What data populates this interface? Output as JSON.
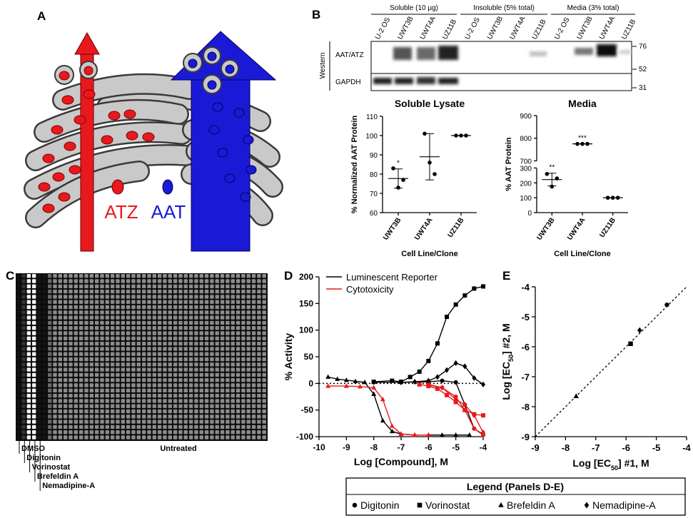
{
  "panel_labels": [
    "A",
    "B",
    "C",
    "D",
    "E"
  ],
  "panel_a": {
    "labels": [
      "ATZ",
      "AAT"
    ]
  },
  "panel_b": {
    "groups": [
      "Soluble (10 µg)",
      "Insoluble (5% total)",
      "Media (3% total)"
    ],
    "lanes": [
      "U-2 OS",
      "UWT3B",
      "UWT4A",
      "UZ11B",
      "U-2 OS",
      "UWT3B",
      "UWT4A",
      "UZ11B",
      "U-2 OS",
      "UWT3B",
      "UWT4A",
      "UZ11B"
    ],
    "method": "Western",
    "rows": [
      "AAT/ATZ",
      "GAPDH"
    ],
    "markers": [
      76,
      52,
      31
    ]
  },
  "panel_c": {
    "treatments": [
      "Nemadipine-A",
      "Brefeldin A",
      "Vorinostat",
      "Digitonin",
      "DMSO"
    ],
    "untreated": "Untreated"
  },
  "legend": {
    "title": "Legend (Panels D-E)",
    "entries": [
      {
        "marker": "circle",
        "name": "Digitonin"
      },
      {
        "marker": "square",
        "name": "Vorinostat"
      },
      {
        "marker": "triangle",
        "name": "Brefeldin A"
      },
      {
        "marker": "diamond",
        "name": "Nemadipine-A"
      }
    ]
  },
  "chart_data": [
    {
      "type": "dot",
      "title": "Soluble Lysate",
      "y_label": "% Normalized AAT Protein",
      "x_label": "Cell Line/Clone",
      "categories": [
        "UWT3B",
        "UWT4A",
        "UZ11B"
      ],
      "points": [
        [
          83,
          73,
          77
        ],
        [
          101,
          86,
          80
        ],
        [
          100,
          100,
          100
        ]
      ],
      "means": [
        77.7,
        89,
        100
      ],
      "errors": [
        5,
        12,
        0
      ],
      "annotations": [
        "*",
        null,
        null
      ],
      "ylim": [
        60,
        110
      ],
      "yticks": [
        60,
        70,
        80,
        90,
        100,
        110
      ],
      "color": "#000000"
    },
    {
      "type": "dot",
      "title": "Media",
      "y_label": "% AAT Protein",
      "x_label": "Cell Line/Clone",
      "categories": [
        "UWT3B",
        "UWT4A",
        "UZ11B"
      ],
      "points": [
        [
          260,
          175,
          230
        ],
        [
          775,
          775,
          775
        ],
        [
          100,
          100,
          100
        ]
      ],
      "means": [
        222,
        775,
        100
      ],
      "errors": [
        43,
        0,
        0
      ],
      "annotations": [
        "**",
        "***",
        null
      ],
      "ylim": [
        0,
        900
      ],
      "ybreak": [
        300,
        700
      ],
      "yticks": [
        0,
        100,
        200,
        300,
        700,
        800,
        900
      ],
      "color": "#000000"
    },
    {
      "type": "line",
      "x_label": "Log [Compound], M",
      "y_label": "% Activity",
      "xlim": [
        -10,
        -4
      ],
      "xticks": [
        -10,
        -9,
        -8,
        -7,
        -6,
        -5,
        -4
      ],
      "ylim": [
        -100,
        200
      ],
      "yticks": [
        -100,
        -50,
        0,
        50,
        100,
        150,
        200
      ],
      "reference_y": 0,
      "legend": [
        {
          "name": "Luminescent Reporter",
          "color": "#000000"
        },
        {
          "name": "Cytotoxicity",
          "color": "#e8191c"
        }
      ],
      "series": [
        {
          "color": "#000000",
          "marker": "square",
          "x": [
            -8,
            -7.33,
            -7,
            -6.67,
            -6.33,
            -6,
            -5.67,
            -5.33,
            -5,
            -4.67,
            -4.33,
            -4
          ],
          "values": [
            3,
            5,
            3,
            12,
            22,
            42,
            75,
            125,
            148,
            165,
            178,
            182
          ]
        },
        {
          "color": "#000000",
          "marker": "circle",
          "x": [
            -8,
            -7,
            -6,
            -5.5,
            -5,
            -4.67,
            -4.33,
            -4
          ],
          "values": [
            2,
            2,
            3,
            5,
            2,
            -40,
            -85,
            -96
          ]
        },
        {
          "color": "#000000",
          "marker": "triangle",
          "x": [
            -9.67,
            -9.33,
            -9,
            -8.67,
            -8.33,
            -8,
            -7.67,
            -7.33,
            -7,
            -6.5,
            -6,
            -5.5,
            -5,
            -4.5
          ],
          "values": [
            12,
            8,
            6,
            4,
            2,
            -20,
            -70,
            -90,
            -95,
            -97,
            -97,
            -97,
            -97,
            -97
          ]
        },
        {
          "color": "#000000",
          "marker": "diamond",
          "x": [
            -7,
            -6.5,
            -6,
            -5.67,
            -5.33,
            -5,
            -4.67,
            -4.33,
            -4
          ],
          "values": [
            2,
            3,
            5,
            12,
            25,
            38,
            32,
            10,
            -2
          ]
        },
        {
          "color": "#e8191c",
          "marker": "square",
          "x": [
            -6.33,
            -6,
            -5.67,
            -5.33,
            -5,
            -4.67,
            -4.33,
            -4
          ],
          "values": [
            -2,
            -5,
            -10,
            -22,
            -35,
            -50,
            -58,
            -60
          ]
        },
        {
          "color": "#e8191c",
          "marker": "circle",
          "x": [
            -6,
            -5.5,
            -5,
            -4.67,
            -4.33,
            -4
          ],
          "values": [
            -2,
            -8,
            -25,
            -50,
            -85,
            -97
          ]
        },
        {
          "color": "#e8191c",
          "marker": "triangle",
          "x": [
            -9.67,
            -9,
            -8.5,
            -8,
            -7.67,
            -7.33,
            -7,
            -6.5,
            -6
          ],
          "values": [
            -5,
            -5,
            -6,
            -8,
            -30,
            -80,
            -95,
            -97,
            -97
          ]
        },
        {
          "color": "#e8191c",
          "marker": "diamond",
          "x": [
            -6,
            -5.5,
            -5,
            -4.67,
            -4.33,
            -4
          ],
          "values": [
            -3,
            -8,
            -30,
            -40,
            -60,
            -92
          ]
        }
      ]
    },
    {
      "type": "scatter",
      "x_label": [
        "Log [EC",
        "50",
        "] #1, M"
      ],
      "y_label": [
        "Log [EC",
        "50",
        "] #2, M"
      ],
      "xlim": [
        -9,
        -4
      ],
      "xticks": [
        -9,
        -8,
        -7,
        -6,
        -5,
        -4
      ],
      "ylim": [
        -9,
        -4
      ],
      "yticks": [
        -9,
        -8,
        -7,
        -6,
        -5,
        -4
      ],
      "identity_line": true,
      "series": [
        {
          "color": "#000000",
          "marker": "triangle",
          "x": [
            -7.65
          ],
          "values": [
            -7.65
          ]
        },
        {
          "color": "#000000",
          "marker": "square",
          "x": [
            -5.85
          ],
          "values": [
            -5.9
          ]
        },
        {
          "color": "#000000",
          "marker": "diamond",
          "x": [
            -5.55
          ],
          "values": [
            -5.45
          ]
        },
        {
          "color": "#000000",
          "marker": "circle",
          "x": [
            -4.65
          ],
          "values": [
            -4.6
          ]
        }
      ]
    }
  ]
}
